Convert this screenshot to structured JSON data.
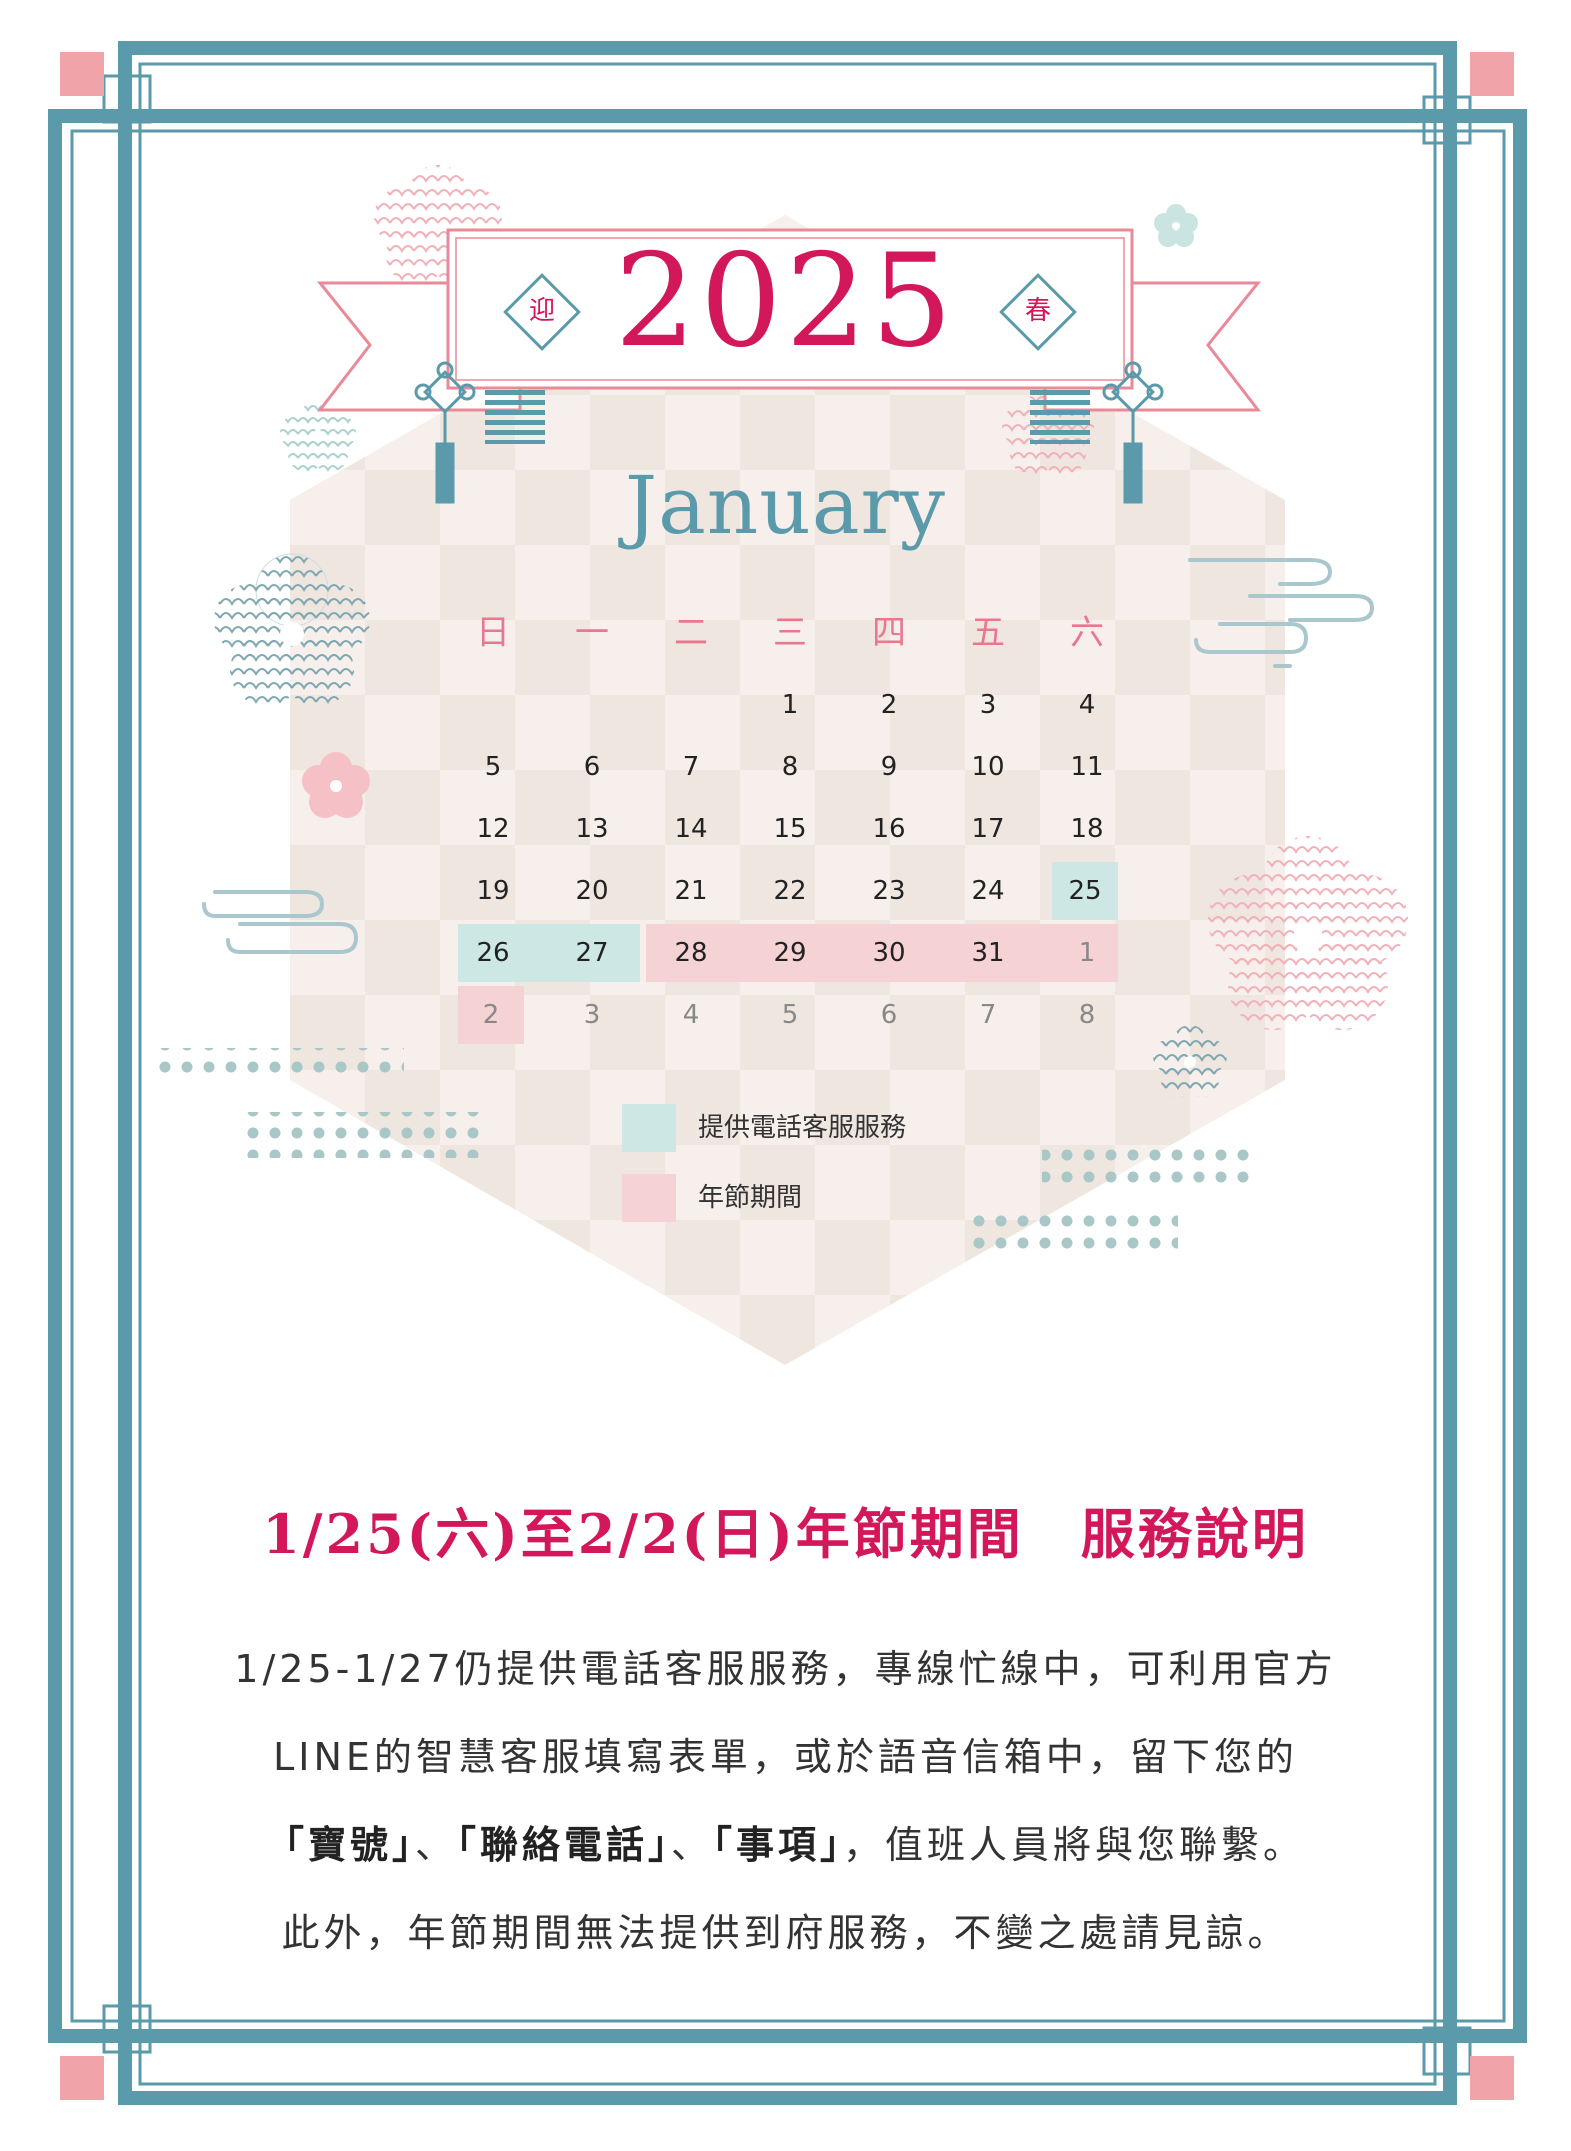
{
  "header": {
    "year": "2025",
    "left_badge": "迎",
    "right_badge": "春"
  },
  "calendar": {
    "month": "January",
    "weekdays": [
      "日",
      "一",
      "二",
      "三",
      "四",
      "五",
      "六"
    ],
    "weeks": [
      [
        "",
        "",
        "",
        "1",
        "2",
        "3",
        "4"
      ],
      [
        "5",
        "6",
        "7",
        "8",
        "9",
        "10",
        "11"
      ],
      [
        "12",
        "13",
        "14",
        "15",
        "16",
        "17",
        "18"
      ],
      [
        "19",
        "20",
        "21",
        "22",
        "23",
        "24",
        "25"
      ],
      [
        "26",
        "27",
        "28",
        "29",
        "30",
        "31",
        "1"
      ],
      [
        "2",
        "3",
        "4",
        "5",
        "6",
        "7",
        "8"
      ]
    ]
  },
  "legend": {
    "phone_service": "提供電話客服服務",
    "holiday": "年節期間"
  },
  "colors": {
    "frame": "#5a9aab",
    "accent": "#d2185a",
    "phone_service": "#cde8e4",
    "holiday": "#f5d3d4",
    "pink_corner": "#f0a3a8"
  },
  "notice": {
    "title": "1/25(六)至2/2(日)年節期間　服務說明",
    "line1": "1/25-1/27仍提供電話客服服務，專線忙線中，可利用官方",
    "line2": "LINE的智慧客服填寫表單，或於語音信箱中，留下您的",
    "line3_bold_1": "「寶號」",
    "line3_sep_1": "、",
    "line3_bold_2": "「聯絡電話」",
    "line3_sep_2": "、",
    "line3_bold_3": "「事項」",
    "line3_rest": "，值班人員將與您聯繫。",
    "line4": "此外，年節期間無法提供到府服務，不變之處請見諒。"
  }
}
